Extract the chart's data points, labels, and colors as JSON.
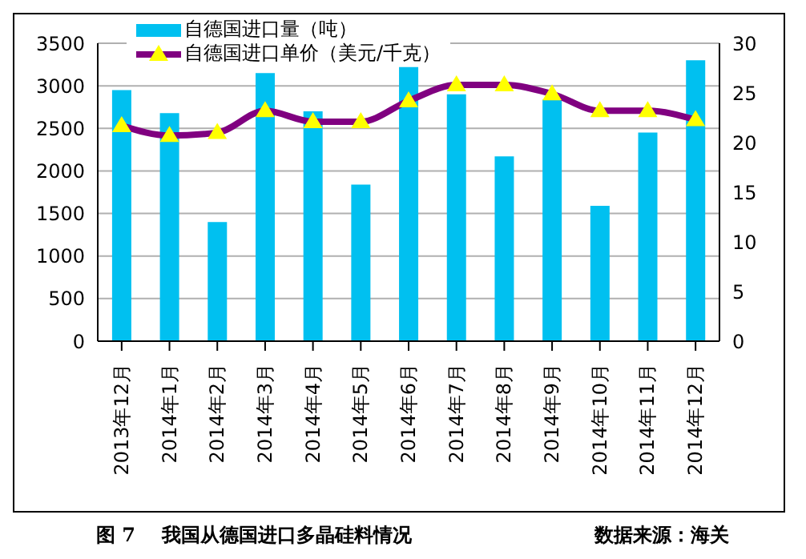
{
  "chart_data": {
    "type": "bar",
    "title": "图 7    我国从德国进口多晶硅料情况",
    "annotations": [
      "数据来源：海关"
    ],
    "categories": [
      "2013年12月",
      "2014年1月",
      "2014年2月",
      "2014年3月",
      "2014年4月",
      "2014年5月",
      "2014年6月",
      "2014年7月",
      "2014年8月",
      "2014年9月",
      "2014年10月",
      "2014年11月",
      "2014年12月"
    ],
    "series": [
      {
        "name": "自德国进口量（吨）",
        "color": "#00c0f0",
        "values": [
          2950,
          2680,
          1400,
          3150,
          2700,
          1840,
          3220,
          2900,
          2170,
          2840,
          1590,
          2450,
          3300
        ]
      },
      {
        "name": "自德国进口单价（美元/千克）",
        "type": "line",
        "axis": "y2",
        "color": "#800080",
        "marker": "triangle",
        "values": [
          21.7,
          20.7,
          21.0,
          23.2,
          22.1,
          22.1,
          24.2,
          25.8,
          25.8,
          24.9,
          23.2,
          23.2,
          22.3
        ]
      }
    ],
    "ylim": [
      0,
      3500
    ],
    "yticks": [
      0,
      500,
      1000,
      1500,
      2000,
      2500,
      3000,
      3500
    ],
    "y2lim": [
      0,
      30
    ],
    "y2ticks": [
      0,
      5,
      10,
      15,
      20,
      25,
      30
    ],
    "grid": "y",
    "legend": "top left"
  }
}
